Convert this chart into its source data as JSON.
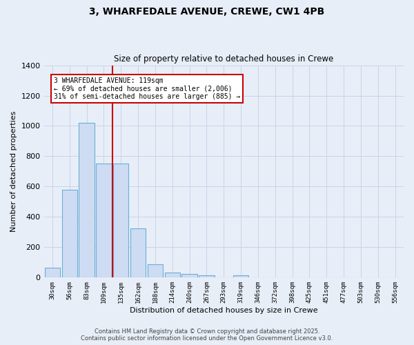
{
  "title": "3, WHARFEDALE AVENUE, CREWE, CW1 4PB",
  "subtitle": "Size of property relative to detached houses in Crewe",
  "xlabel": "Distribution of detached houses by size in Crewe",
  "ylabel": "Number of detached properties",
  "bar_labels": [
    "30sqm",
    "56sqm",
    "83sqm",
    "109sqm",
    "135sqm",
    "162sqm",
    "188sqm",
    "214sqm",
    "240sqm",
    "267sqm",
    "293sqm",
    "319sqm",
    "346sqm",
    "372sqm",
    "398sqm",
    "425sqm",
    "451sqm",
    "477sqm",
    "503sqm",
    "530sqm",
    "556sqm"
  ],
  "bar_values": [
    65,
    580,
    1020,
    750,
    750,
    325,
    90,
    35,
    22,
    15,
    0,
    15,
    0,
    0,
    0,
    0,
    0,
    0,
    0,
    0,
    0
  ],
  "bar_color": "#cddcf3",
  "bar_edge_color": "#6baed6",
  "ylim": [
    0,
    1400
  ],
  "yticks": [
    0,
    200,
    400,
    600,
    800,
    1000,
    1200,
    1400
  ],
  "property_label": "3 WHARFEDALE AVENUE: 119sqm",
  "annotation_line1": "← 69% of detached houses are smaller (2,006)",
  "annotation_line2": "31% of semi-detached houses are larger (885) →",
  "vline_color": "#cc0000",
  "vline_x": 3.5,
  "annotation_box_color": "#cc0000",
  "bg_color": "#e8eef8",
  "grid_color": "#c8d4e8",
  "footer_line1": "Contains HM Land Registry data © Crown copyright and database right 2025.",
  "footer_line2": "Contains public sector information licensed under the Open Government Licence v3.0."
}
